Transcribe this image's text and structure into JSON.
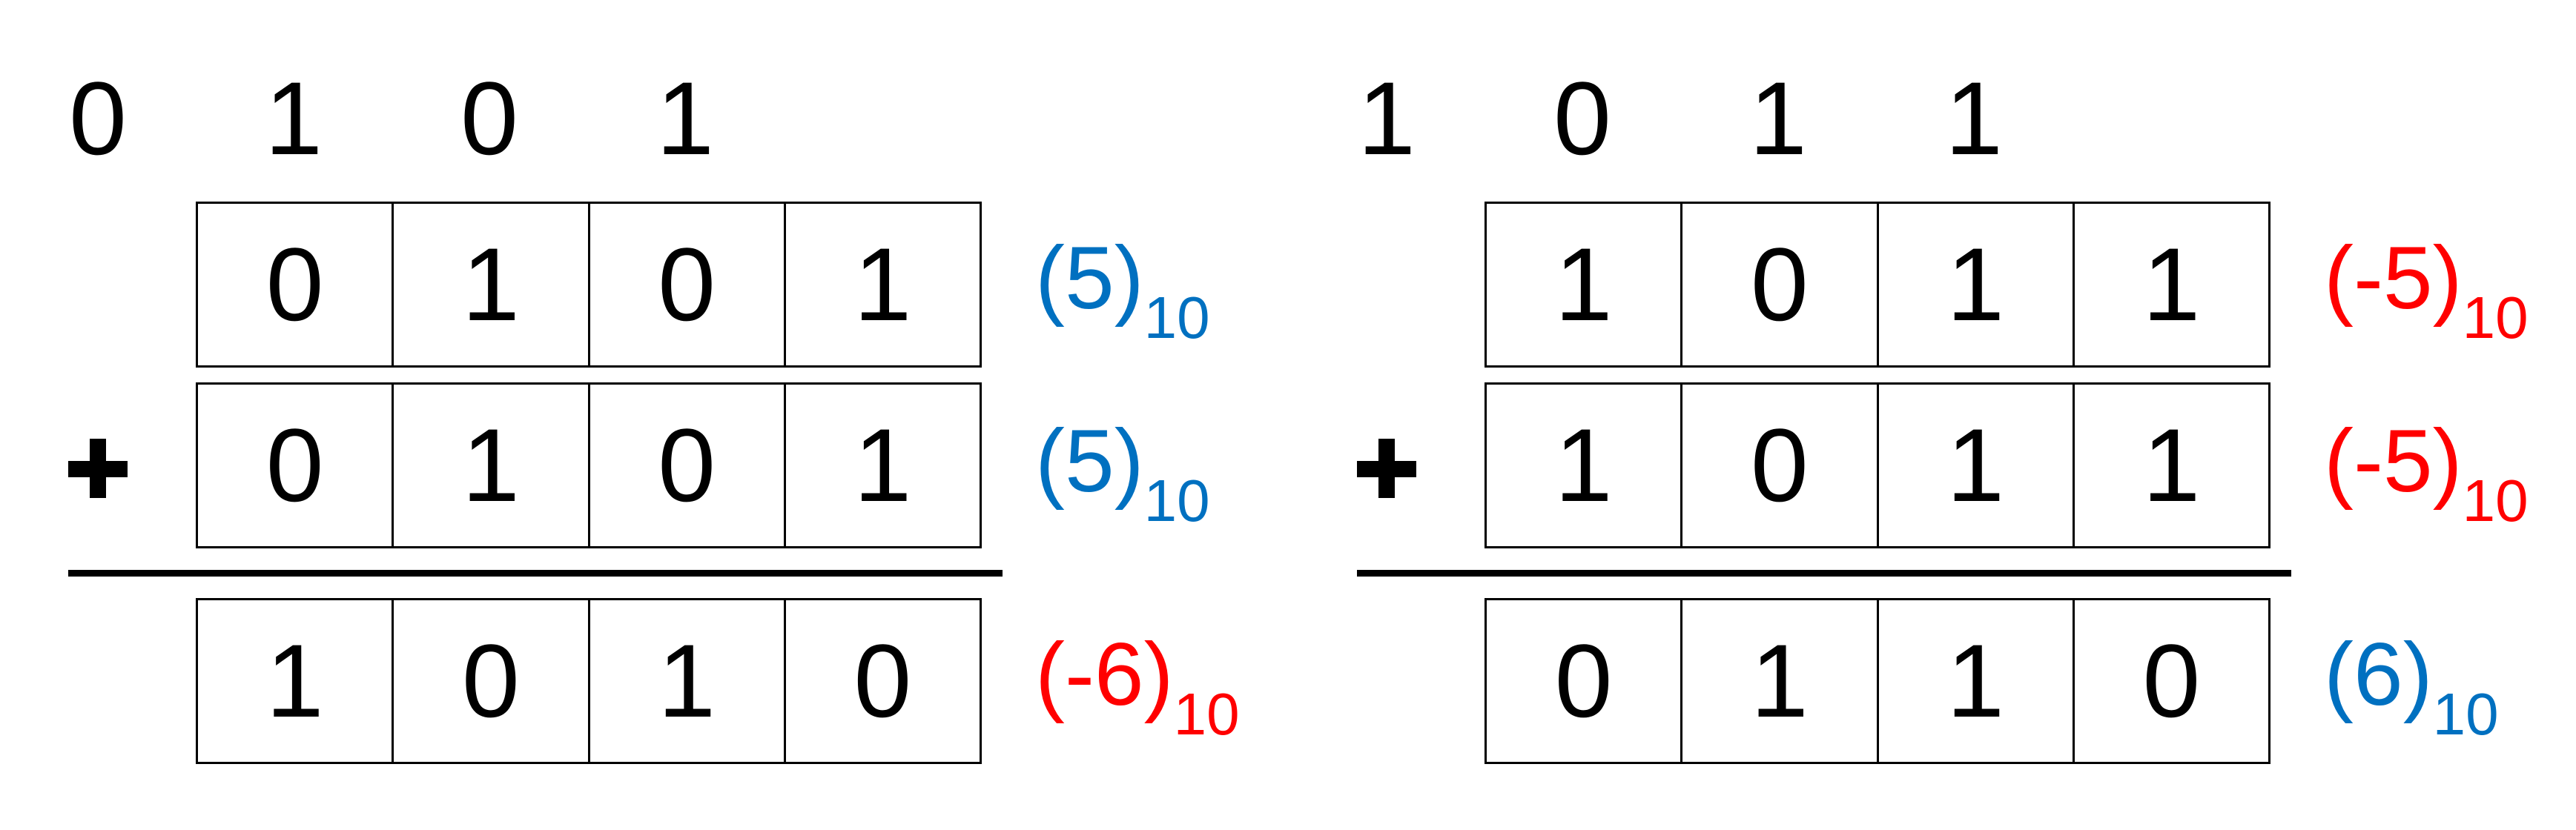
{
  "colors": {
    "positive": "#0070C0",
    "negative": "#FF0000",
    "ink": "#000000"
  },
  "examples": [
    {
      "carry": [
        "0",
        "1",
        "0",
        "1"
      ],
      "operand_a": {
        "bits": [
          "0",
          "1",
          "0",
          "1"
        ],
        "value": "(5)",
        "base": "10",
        "sign": "positive"
      },
      "operator": "+",
      "operand_b": {
        "bits": [
          "0",
          "1",
          "0",
          "1"
        ],
        "value": "(5)",
        "base": "10",
        "sign": "positive"
      },
      "sum": {
        "bits": [
          "1",
          "0",
          "1",
          "0"
        ],
        "value": "(-6)",
        "base": "10",
        "sign": "negative"
      }
    },
    {
      "carry": [
        "1",
        "0",
        "1",
        "1"
      ],
      "operand_a": {
        "bits": [
          "1",
          "0",
          "1",
          "1"
        ],
        "value": "(-5)",
        "base": "10",
        "sign": "negative"
      },
      "operator": "+",
      "operand_b": {
        "bits": [
          "1",
          "0",
          "1",
          "1"
        ],
        "value": "(-5)",
        "base": "10",
        "sign": "negative"
      },
      "sum": {
        "bits": [
          "0",
          "1",
          "1",
          "0"
        ],
        "value": "(6)",
        "base": "10",
        "sign": "positive"
      }
    }
  ]
}
